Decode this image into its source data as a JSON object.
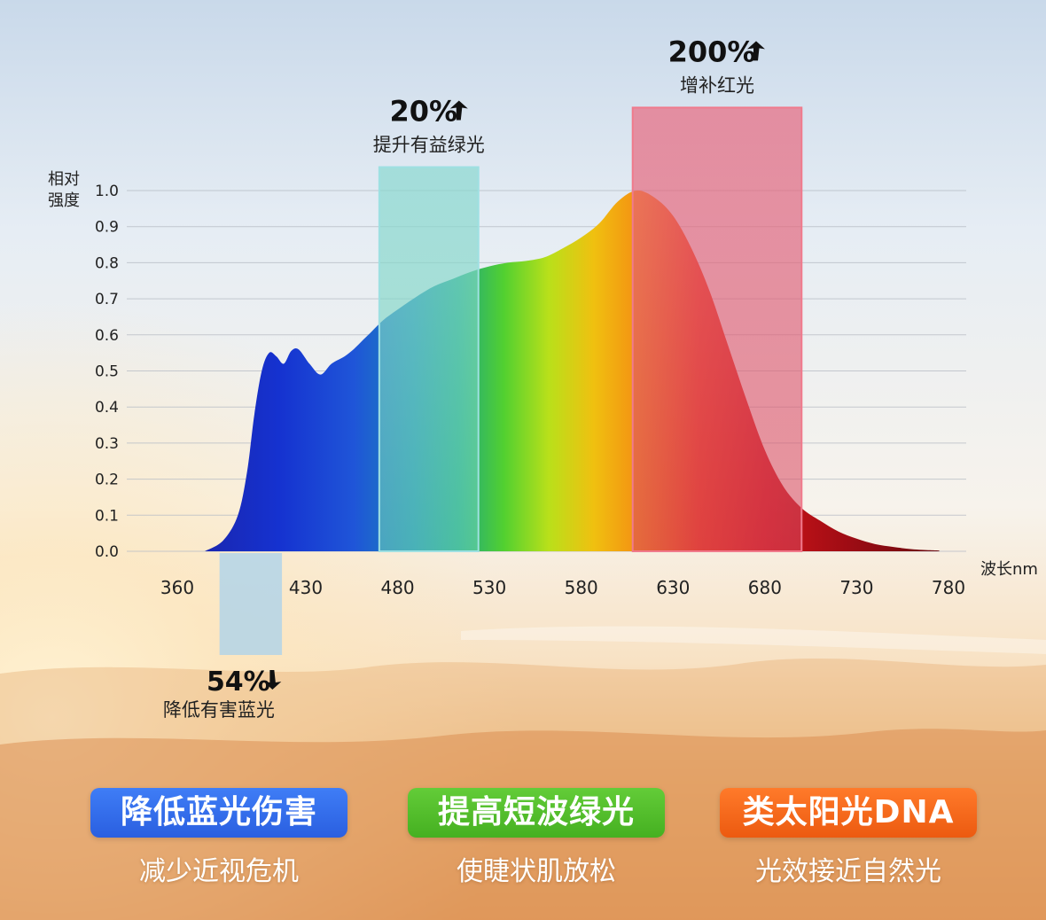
{
  "chart_data": {
    "type": "area",
    "title": "",
    "xlabel": "波长nm",
    "ylabel": "相对强度",
    "x_ticks": [
      360,
      430,
      480,
      530,
      580,
      630,
      680,
      730,
      780
    ],
    "y_ticks": [
      "0.0",
      "0.1",
      "0.2",
      "0.3",
      "0.4",
      "0.5",
      "0.6",
      "0.7",
      "0.8",
      "0.9",
      "1.0"
    ],
    "xlim": [
      360,
      780
    ],
    "ylim": [
      0,
      1.0
    ],
    "grid": true,
    "series": [
      {
        "name": "",
        "x": [
          375,
          385,
          393,
          398,
          402,
          406,
          410,
          414,
          418,
          422,
          426,
          432,
          438,
          444,
          451,
          456,
          461,
          466,
          472,
          480,
          490,
          500,
          510,
          520,
          530,
          540,
          550,
          560,
          570,
          580,
          590,
          600,
          610,
          620,
          630,
          640,
          650,
          660,
          670,
          680,
          690,
          700,
          710,
          720,
          730,
          740,
          750,
          760,
          770,
          775
        ],
        "y": [
          0.0,
          0.03,
          0.1,
          0.22,
          0.38,
          0.5,
          0.55,
          0.54,
          0.52,
          0.555,
          0.56,
          0.52,
          0.49,
          0.52,
          0.54,
          0.56,
          0.585,
          0.61,
          0.64,
          0.67,
          0.705,
          0.735,
          0.755,
          0.775,
          0.79,
          0.8,
          0.805,
          0.815,
          0.84,
          0.87,
          0.91,
          0.97,
          1.0,
          0.98,
          0.93,
          0.84,
          0.72,
          0.57,
          0.42,
          0.28,
          0.18,
          0.12,
          0.085,
          0.055,
          0.035,
          0.02,
          0.012,
          0.006,
          0.003,
          0.002
        ]
      }
    ],
    "highlights": [
      {
        "label": "提升有益绿光",
        "percent": "20%",
        "direction": "up",
        "x_range": [
          470,
          524
        ],
        "y_top": 1.065,
        "color": "#7fd8c8"
      },
      {
        "label": "增补红光",
        "percent": "200%",
        "direction": "up",
        "x_range": [
          608,
          700
        ],
        "y_top": 1.23,
        "color": "#e8607a"
      },
      {
        "label": "降低有害蓝光",
        "percent": "54%",
        "direction": "down",
        "x_range": [
          383,
          417
        ],
        "color": "#a8d0ec"
      }
    ]
  },
  "badges": [
    {
      "label": "降低蓝光伤害",
      "sub": "减少近视危机",
      "color": "#3a72f0"
    },
    {
      "label": "提高短波绿光",
      "sub": "使睫状肌放松",
      "color": "#56c02c"
    },
    {
      "label": "类太阳光DNA",
      "sub": "光效接近自然光",
      "color": "#f26a1c"
    }
  ]
}
